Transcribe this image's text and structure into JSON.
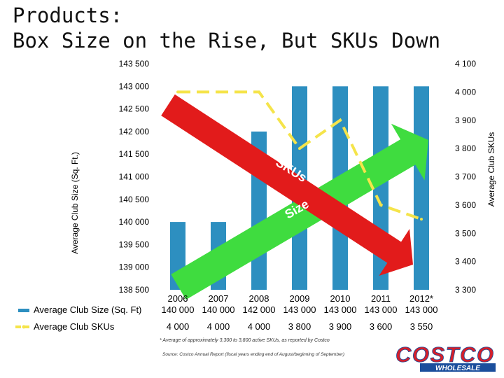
{
  "slide": {
    "title_line1": "Products:",
    "title_line2": "Box Size on the Rise, But SKUs Down",
    "footnote": "* Average of approximately 3,300 to 3,800 active SKUs, as reported by Costco",
    "source": "Source: Costco Annual Report (fiscal years ending end of August/beginning of September)",
    "logo_text": "COSTCO",
    "logo_subtext": "WHOLESALE"
  },
  "colors": {
    "bar": "#2D8FC0",
    "sku_line": "#F5E44A",
    "red_arrow": "#E21B1B",
    "green_arrow": "#3FDC3F",
    "logo_red": "#D51F2A",
    "logo_blue": "#1A4E9C"
  },
  "chart_data": {
    "type": "bar+line",
    "categories": [
      "2006",
      "2007",
      "2008",
      "2009",
      "2010",
      "2011",
      "2012*"
    ],
    "series": [
      {
        "name": "Average Club Size (Sq. Ft)",
        "type": "bar",
        "axis": "left",
        "values": [
          140000,
          140000,
          142000,
          143000,
          143000,
          143000,
          143000
        ]
      },
      {
        "name": "Average Club SKUs",
        "type": "line",
        "axis": "right",
        "values": [
          4000,
          4000,
          4000,
          3800,
          3900,
          3600,
          3550
        ]
      }
    ],
    "table_values": {
      "Average Club Size (Sq. Ft)": [
        "140 000",
        "140 000",
        "142 000",
        "143 000",
        "143 000",
        "143 000",
        "143 000"
      ],
      "Average Club SKUs": [
        "4 000",
        "4 000",
        "4 000",
        "3 800",
        "3 900",
        "3 600",
        "3 550"
      ]
    },
    "ylabel_left": "Average Club Size (Sq. Ft.)",
    "ylabel_right": "Average Club SKUs",
    "ylim_left": [
      138500,
      143500
    ],
    "ylim_right": [
      3300,
      4100
    ],
    "yticks_left": [
      138500,
      139000,
      139500,
      140000,
      140500,
      141000,
      141500,
      142000,
      142500,
      143000,
      143500
    ],
    "yticks_left_labels": [
      "138 500",
      "139 000",
      "139 500",
      "140 000",
      "140 500",
      "141 000",
      "141 500",
      "142 000",
      "142 500",
      "143 000",
      "143 500"
    ],
    "yticks_right": [
      3300,
      3400,
      3500,
      3600,
      3700,
      3800,
      3900,
      4000,
      4100
    ],
    "yticks_right_labels": [
      "3 300",
      "3 400",
      "3 500",
      "3 600",
      "3 700",
      "3 800",
      "3 900",
      "4 000",
      "4 100"
    ],
    "annotations": [
      "SKUs",
      "Size"
    ],
    "legend": "bottom-left data table",
    "grid": false
  }
}
